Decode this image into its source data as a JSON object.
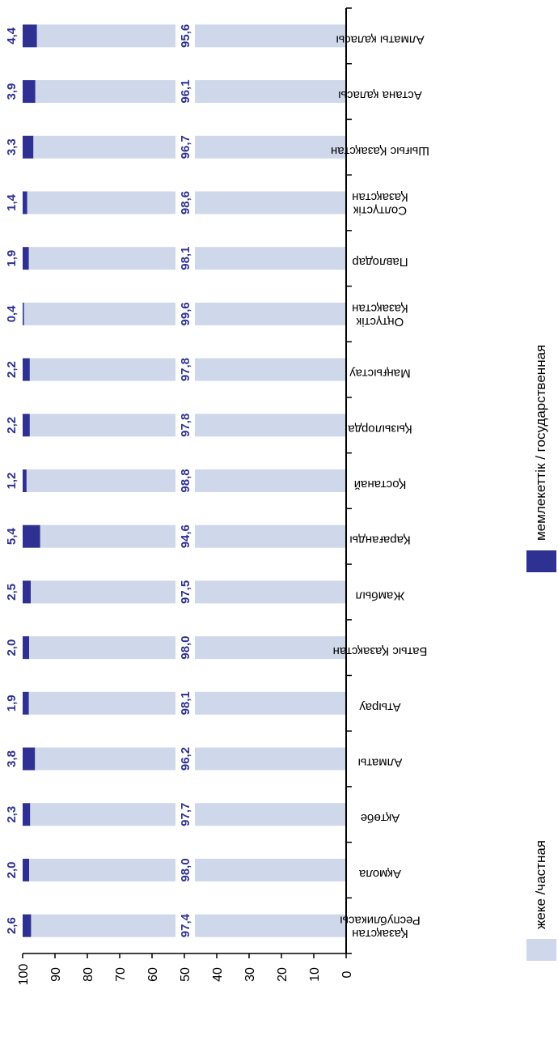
{
  "chart_data": {
    "type": "bar",
    "stacked": true,
    "percent": true,
    "orientation": "horizontal",
    "categories": [
      "Алматы қаласы",
      "Астана қаласы",
      "Шығыс Қазақстан",
      "Солтүстік Қазақстан",
      "Павлодар",
      "Оңтүстік Қазақстан",
      "Маңғыстау",
      "Қызылорда",
      "Қостанай",
      "Қарағанды",
      "Жамбыл",
      "Батыс Қазақстан",
      "Атырау",
      "Алматы",
      "Ақтөбе",
      "Ақмола",
      "Қазақстан Республикасы"
    ],
    "series": [
      {
        "name": "жеке /частная",
        "color": "#cfd7ea",
        "values": [
          95.6,
          96.1,
          96.7,
          98.6,
          98.1,
          99.6,
          97.8,
          97.8,
          98.8,
          94.6,
          97.5,
          98.0,
          98.1,
          96.2,
          97.7,
          98.0,
          97.4
        ],
        "labels": [
          "95,6",
          "96,1",
          "96,7",
          "98,6",
          "98,1",
          "99,6",
          "97,8",
          "97,8",
          "98,8",
          "94,6",
          "97,5",
          "98,0",
          "98,1",
          "96,2",
          "97,7",
          "98,0",
          "97,4"
        ]
      },
      {
        "name": "мемлекеттік / государственная",
        "color": "#2e3192",
        "values": [
          4.4,
          3.9,
          3.3,
          1.4,
          1.9,
          0.4,
          2.2,
          2.2,
          1.2,
          5.4,
          2.5,
          2.0,
          1.9,
          3.8,
          2.3,
          2.0,
          2.6
        ],
        "labels": [
          "4,4",
          "3,9",
          "3,3",
          "1,4",
          "1,9",
          "0,4",
          "2,2",
          "2,2",
          "1,2",
          "5,4",
          "2,5",
          "2,0",
          "1,9",
          "3,8",
          "2,3",
          "2,0",
          "2,6"
        ]
      }
    ],
    "value_axis": {
      "min": 0,
      "max": 100,
      "ticks": [
        "0",
        "10",
        "20",
        "30",
        "40",
        "50",
        "60",
        "70",
        "80",
        "90",
        "100"
      ]
    },
    "value_label_color": "#2e3192",
    "axis_color": "#000000",
    "grid": false,
    "legend": "bottom-left"
  }
}
